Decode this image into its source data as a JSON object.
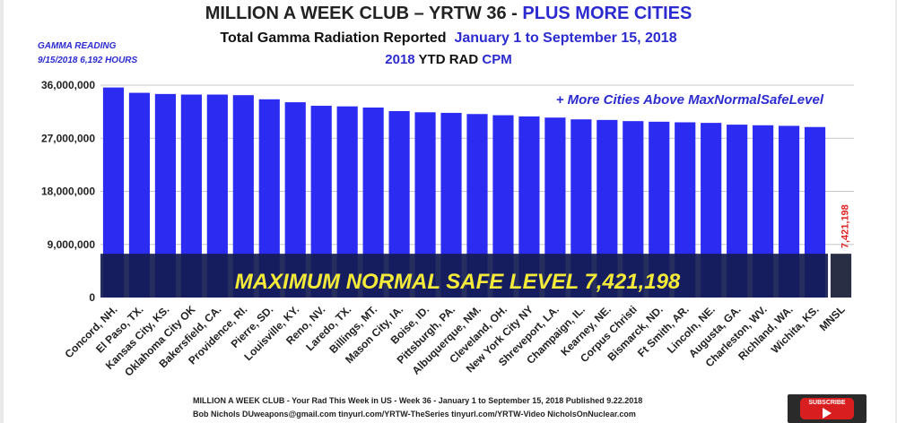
{
  "header": {
    "title_main": "MILLION A WEEK CLUB – YRTW 36 - ",
    "title_highlight": "PLUS MORE CITIES",
    "subtitle_main": "Total Gamma Radiation Reported",
    "subtitle_dates": "January 1 to September 15, 2018",
    "line3_year": "2018",
    "line3_mid": "YTD RAD",
    "line3_unit": "CPM",
    "gamma_label": "GAMMA READING",
    "gamma_value": "9/15/2018  6,192 HOURS"
  },
  "footer": {
    "line1": "MILLION A WEEK CLUB - Your Rad This Week in US - Week 36 - January 1 to September 15, 2018   Published 9.22.2018",
    "line2": "Bob Nichols  DUweapons@gmail.com tinyurl.com/YRTW-TheSeries  tinyurl.com/YRTW-Video   NicholsOnNuclear.com"
  },
  "subscribe_label": "SUBSCRIBE",
  "chart_data": {
    "type": "bar",
    "title": "",
    "categories": [
      "Concord, NH.",
      "El Paso, TX.",
      "Kansas City, KS.",
      "Oklahoma City OK",
      "Bakersfield, CA.",
      "Providence, RI.",
      "Pierre, SD.",
      "Louisville, KY.",
      "Reno, NV.",
      "Laredo, TX.",
      "Billings, MT.",
      "Mason City, IA.",
      "Boise, ID.",
      "Pittsburgh, PA.",
      "Albuquerque, NM.",
      "Cleveland, OH.",
      "New York City NY",
      "Shreveport, LA.",
      "Champaign, IL.",
      "Kearney, NE.",
      "Corpus Christi",
      "Bismarck, ND.",
      "Ft Smith, AR.",
      "Lincoln, NE.",
      "Augusta, GA.",
      "Charleston, WV.",
      "Richland, WA.",
      "Wichita, KS.",
      "MNSL"
    ],
    "values": [
      35600000,
      34700000,
      34500000,
      34400000,
      34400000,
      34300000,
      33600000,
      33100000,
      32500000,
      32400000,
      32200000,
      31600000,
      31400000,
      31300000,
      31100000,
      30900000,
      30700000,
      30500000,
      30200000,
      30100000,
      29900000,
      29800000,
      29700000,
      29600000,
      29300000,
      29200000,
      29100000,
      28900000,
      7421198
    ],
    "yticks": [
      "0",
      "9,000,000",
      "18,000,000",
      "27,000,000",
      "36,000,000"
    ],
    "ylim": [
      0,
      36000000
    ],
    "grid": true,
    "bar_color": "#2b2bf2",
    "mnsl_bar_color": "#2a2e44",
    "band_color": "#141c52",
    "annotations": {
      "more_cities": "+ More Cities Above MaxNormalSafeLevel",
      "max_level": "MAXIMUM NORMAL SAFE LEVEL 7,421,198",
      "mnsl_value": "7,421,198"
    },
    "annotation_colors": {
      "more_cities": "#2b2bd0",
      "max_level": "#f3ea3a",
      "mnsl_value": "#e02020"
    }
  }
}
